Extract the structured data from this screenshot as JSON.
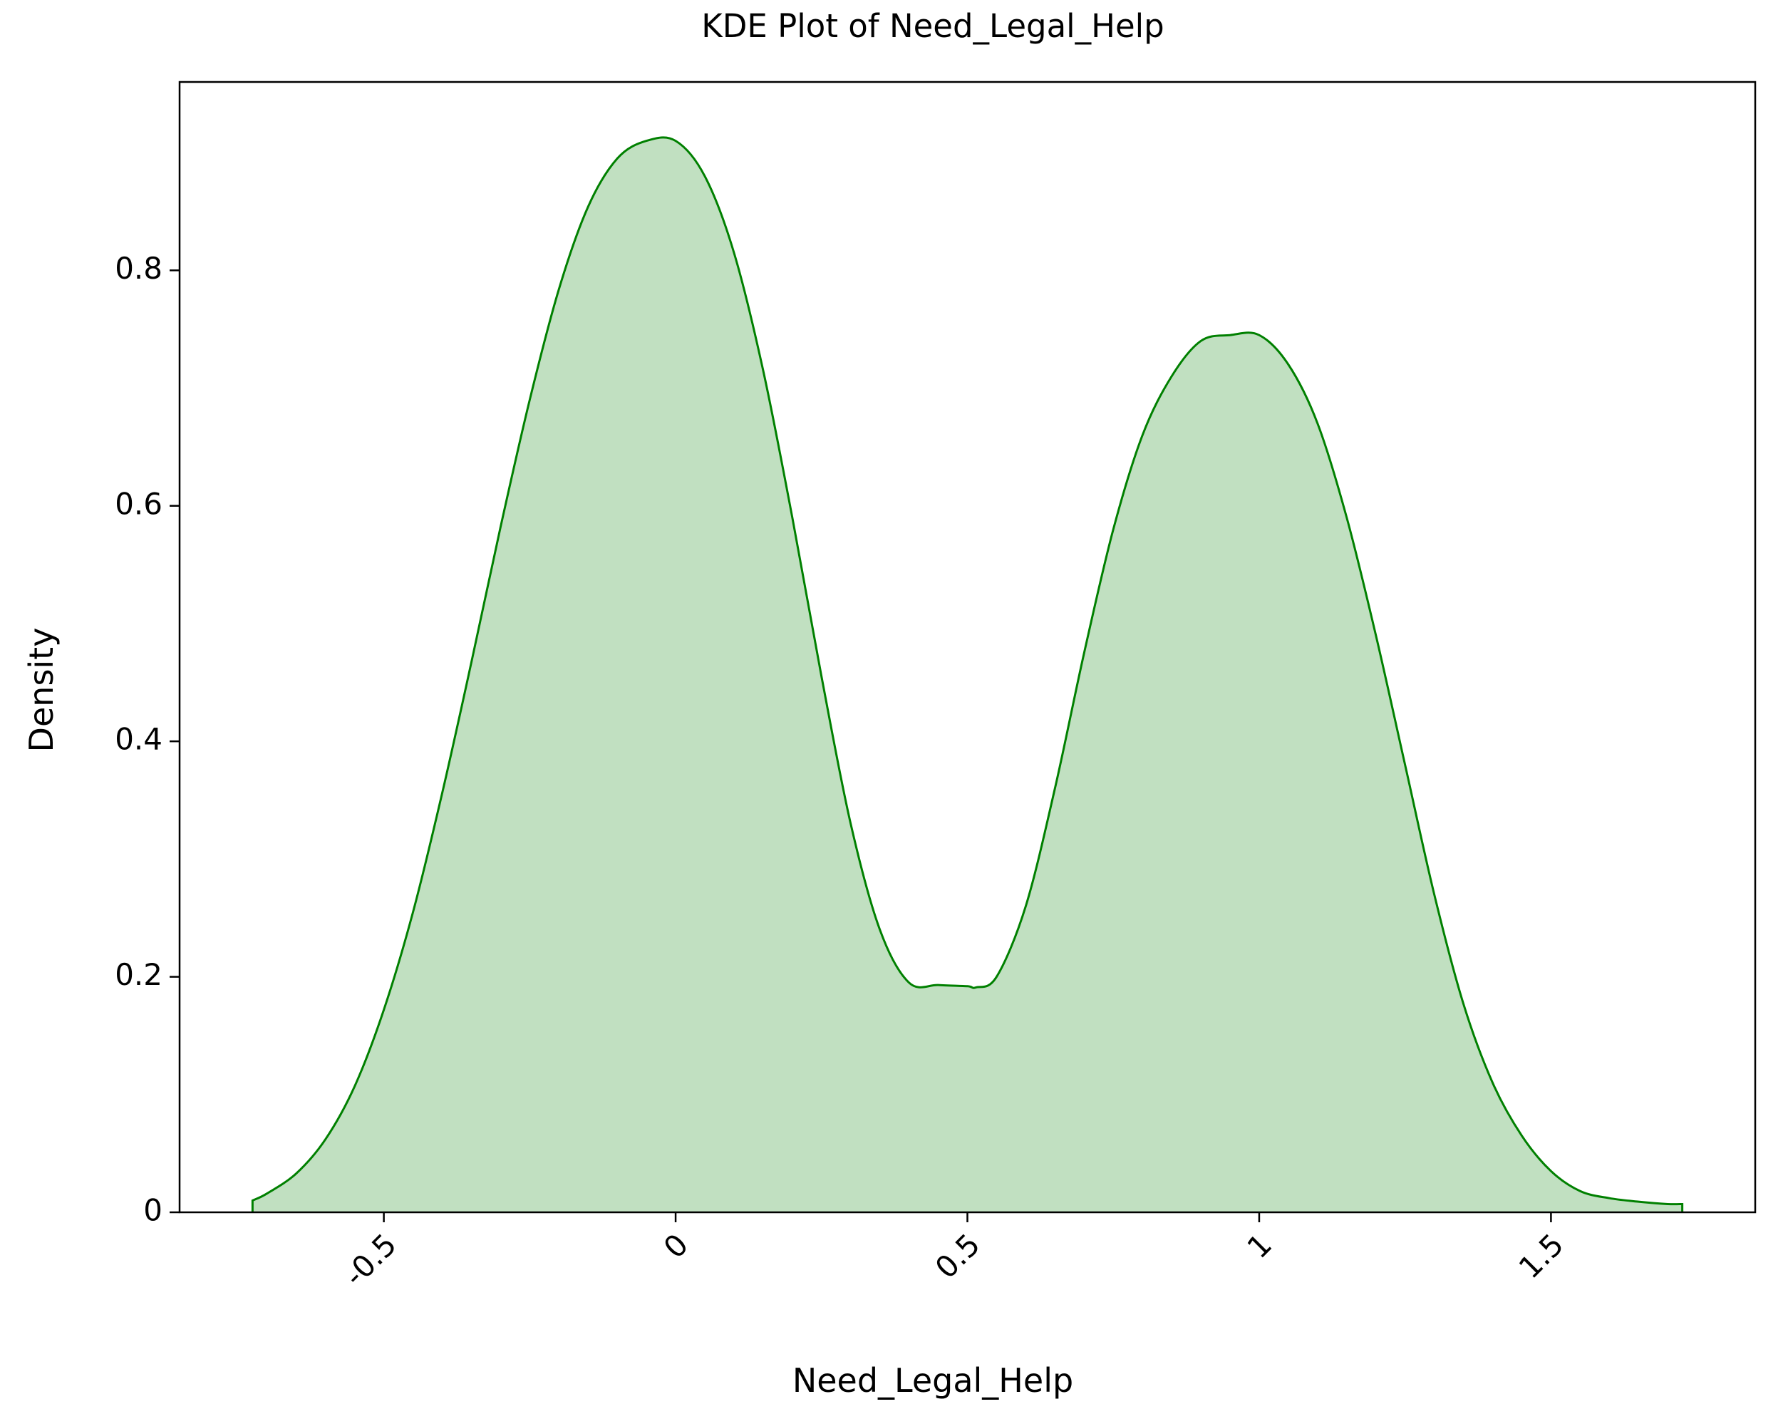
{
  "chart_data": {
    "type": "area",
    "title": "KDE Plot of Need_Legal_Help",
    "xlabel": "Need_Legal_Help",
    "ylabel": "Density",
    "xlim": [
      -0.85,
      1.85
    ],
    "ylim": [
      0,
      0.96
    ],
    "grid": false,
    "legend": "none",
    "colors": {
      "line": "#008000",
      "fill": "#c1e0c1"
    },
    "x_ticks": [
      {
        "value": -0.5,
        "label": "-0.5"
      },
      {
        "value": 0,
        "label": "0"
      },
      {
        "value": 0.5,
        "label": "0.5"
      },
      {
        "value": 1,
        "label": "1"
      },
      {
        "value": 1.5,
        "label": "1.5"
      }
    ],
    "y_ticks": [
      {
        "value": 0,
        "label": "0"
      },
      {
        "value": 0.2,
        "label": "0.2"
      },
      {
        "value": 0.4,
        "label": "0.4"
      },
      {
        "value": 0.6,
        "label": "0.6"
      },
      {
        "value": 0.8,
        "label": "0.8"
      }
    ],
    "series": [
      {
        "x": [
          -0.725,
          -0.7,
          -0.65,
          -0.6,
          -0.55,
          -0.5,
          -0.45,
          -0.4,
          -0.35,
          -0.3,
          -0.25,
          -0.2,
          -0.15,
          -0.1,
          -0.05,
          0.0,
          0.05,
          0.1,
          0.15,
          0.2,
          0.25,
          0.3,
          0.35,
          0.4,
          0.45,
          0.5,
          0.515,
          0.55,
          0.6,
          0.65,
          0.7,
          0.75,
          0.8,
          0.85,
          0.9,
          0.95,
          1.0,
          1.05,
          1.1,
          1.15,
          1.2,
          1.25,
          1.3,
          1.35,
          1.4,
          1.45,
          1.5,
          1.55,
          1.6,
          1.65,
          1.7,
          1.725
        ],
        "y": [
          0.01,
          0.016,
          0.033,
          0.062,
          0.107,
          0.172,
          0.255,
          0.356,
          0.467,
          0.582,
          0.69,
          0.784,
          0.854,
          0.895,
          0.91,
          0.91,
          0.88,
          0.815,
          0.715,
          0.59,
          0.455,
          0.33,
          0.24,
          0.195,
          0.193,
          0.192,
          0.191,
          0.2,
          0.26,
          0.36,
          0.475,
          0.58,
          0.66,
          0.71,
          0.74,
          0.745,
          0.745,
          0.72,
          0.67,
          0.59,
          0.49,
          0.38,
          0.27,
          0.177,
          0.11,
          0.065,
          0.035,
          0.018,
          0.012,
          0.009,
          0.007,
          0.007
        ]
      }
    ]
  }
}
